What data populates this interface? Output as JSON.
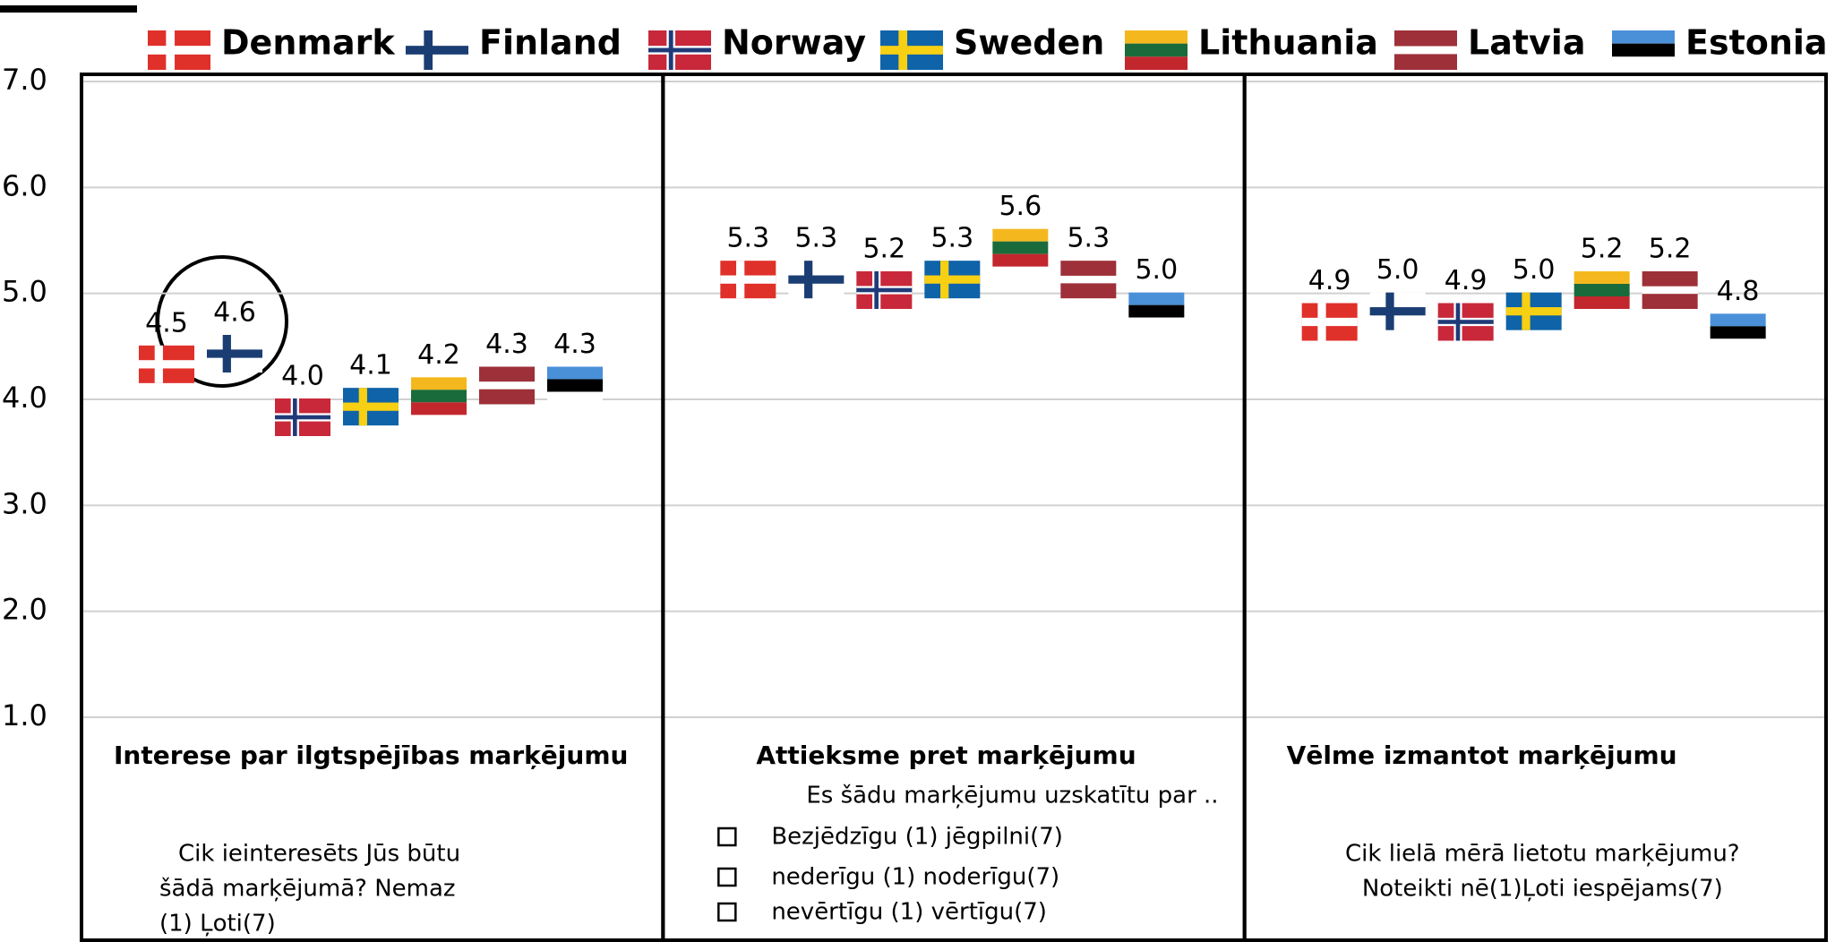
{
  "chart_data": {
    "type": "flag-dot",
    "categories": [
      "Interese par ilgtspējības marķējumu",
      "Attieksme pret marķējumu",
      "Vēlme izmantot marķējumu"
    ],
    "series": [
      {
        "name": "Denmark",
        "color": "#e0302a",
        "values": [
          4.5,
          5.3,
          4.9
        ],
        "value_labels": [
          "4.5",
          "5.3",
          "4.9"
        ]
      },
      {
        "name": "Finland",
        "color": "#1a3d73",
        "values": [
          4.6,
          5.3,
          5.0
        ],
        "value_labels": [
          "4.6",
          "5.3",
          "5.0"
        ]
      },
      {
        "name": "Norway",
        "color": "#c8283a",
        "values": [
          4.0,
          5.2,
          4.9
        ],
        "value_labels": [
          "4.0",
          "5.2",
          "4.9"
        ]
      },
      {
        "name": "Sweden",
        "color": "#0f63a8",
        "values": [
          4.1,
          5.3,
          5.0
        ],
        "value_labels": [
          "4.1",
          "5.3",
          "5.0"
        ]
      },
      {
        "name": "Lithuania",
        "color": "#f4b81e",
        "values": [
          4.2,
          5.6,
          5.2
        ],
        "value_labels": [
          "4.2",
          "5.6",
          "5.2"
        ]
      },
      {
        "name": "Latvia",
        "color": "#9e3039",
        "values": [
          4.3,
          5.3,
          5.2
        ],
        "value_labels": [
          "4.3",
          "5.3",
          "5.2"
        ]
      },
      {
        "name": "Estonia",
        "color": "#4a90d9",
        "values": [
          4.3,
          5.0,
          4.8
        ],
        "value_labels": [
          "4.3",
          "5.0",
          "4.8"
        ]
      }
    ],
    "ylim": [
      1.0,
      7.0
    ],
    "yticks": [
      {
        "value": 1,
        "label": "1.0"
      },
      {
        "value": 2,
        "label": "2.0"
      },
      {
        "value": 3,
        "label": "3.0"
      },
      {
        "value": 4,
        "label": "4.0"
      },
      {
        "value": 5,
        "label": "5.0"
      },
      {
        "value": 6,
        "label": "6.0"
      },
      {
        "value": 7,
        "label": "7.0"
      }
    ],
    "grid": true,
    "notes": [
      {
        "lines": [
          "Cik ieinteresēts Jūs būtu",
          "šādā marķējumā?  Nemaz",
          "(1) Ļoti(7)"
        ]
      },
      {
        "intro": "Es šādu marķējumu uzskatītu par ..",
        "items": [
          "Bezjēdzīgu (1) jēgpilni(7)",
          "nederīgu (1) noderīgu(7)",
          "nevērtīgu (1) vērtīgu(7)"
        ]
      },
      {
        "lines": [
          "Cik lielā mērā lietotu marķējumu?",
          "Noteikti nē(1)Ļoti iespējams(7)"
        ]
      }
    ]
  }
}
